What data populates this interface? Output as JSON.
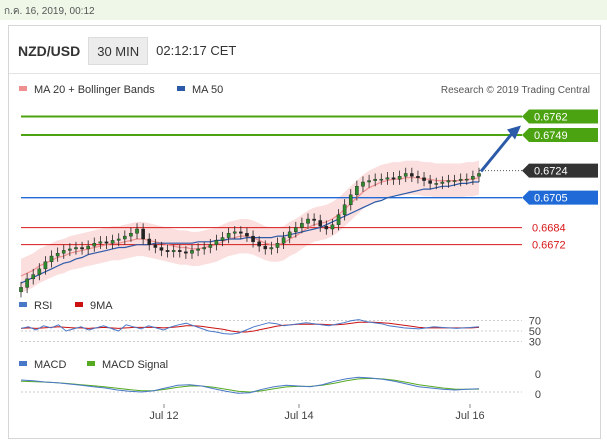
{
  "date_bar": "ก.ค. 16, 2019, 00:12",
  "header": {
    "pair": "NZD/USD",
    "timeframe": "30 MIN",
    "time": "02:12:17 CET"
  },
  "legend": [
    {
      "label": "MA 20 + Bollinger Bands",
      "color": "#f08f8f"
    },
    {
      "label": "MA 50",
      "color": "#2b5aa8"
    }
  ],
  "copyright": "Research © 2019 Trading Central",
  "chart_data": {
    "type": "line",
    "title": "",
    "main": {
      "y_range": [
        0.665,
        0.6775
      ],
      "price_series": [
        0.6642,
        0.6648,
        0.6651,
        0.6655,
        0.666,
        0.6664,
        0.6666,
        0.6668,
        0.6669,
        0.667,
        0.6669,
        0.6671,
        0.6673,
        0.6674,
        0.6673,
        0.6675,
        0.6676,
        0.6678,
        0.668,
        0.6683,
        0.6676,
        0.6672,
        0.667,
        0.6668,
        0.6667,
        0.6668,
        0.6667,
        0.6666,
        0.6668,
        0.6669,
        0.667,
        0.6672,
        0.6675,
        0.6677,
        0.668,
        0.6681,
        0.668,
        0.6678,
        0.6674,
        0.6671,
        0.6669,
        0.667,
        0.6673,
        0.6677,
        0.6681,
        0.6684,
        0.6687,
        0.669,
        0.6689,
        0.6685,
        0.6683,
        0.6686,
        0.6693,
        0.67,
        0.6707,
        0.6713,
        0.6716,
        0.6717,
        0.6718,
        0.6718,
        0.6719,
        0.6718,
        0.672,
        0.6722,
        0.672,
        0.6719,
        0.6717,
        0.6715,
        0.6715,
        0.6716,
        0.6717,
        0.6717,
        0.6718,
        0.6718,
        0.672,
        0.6722
      ],
      "ma20_series": [
        0.665,
        0.6652,
        0.6654,
        0.6657,
        0.6659,
        0.6661,
        0.6663,
        0.6664,
        0.6666,
        0.6667,
        0.6668,
        0.6669,
        0.667,
        0.6671,
        0.6672,
        0.6673,
        0.6673,
        0.6674,
        0.6675,
        0.6676,
        0.6676,
        0.6675,
        0.6674,
        0.6673,
        0.6672,
        0.6671,
        0.667,
        0.667,
        0.6669,
        0.6669,
        0.667,
        0.6671,
        0.6672,
        0.6674,
        0.6676,
        0.6677,
        0.6678,
        0.6678,
        0.6677,
        0.6675,
        0.6673,
        0.6672,
        0.6672,
        0.6673,
        0.6676,
        0.6678,
        0.6681,
        0.6684,
        0.6686,
        0.6687,
        0.6688,
        0.669,
        0.6693,
        0.6697,
        0.6701,
        0.6705,
        0.6709,
        0.6712,
        0.6714,
        0.6716,
        0.6717,
        0.6718,
        0.6718,
        0.6719,
        0.6719,
        0.6719,
        0.6718,
        0.6718,
        0.6717,
        0.6717,
        0.6717,
        0.6717,
        0.6717,
        0.6718,
        0.6718,
        0.6719
      ],
      "ma50_series": [
        0.6645,
        0.6647,
        0.6649,
        0.6651,
        0.6653,
        0.6655,
        0.6657,
        0.6659,
        0.666,
        0.6662,
        0.6663,
        0.6665,
        0.6666,
        0.6667,
        0.6668,
        0.6669,
        0.667,
        0.667,
        0.6671,
        0.6672,
        0.6672,
        0.6672,
        0.6673,
        0.6673,
        0.6673,
        0.6673,
        0.6673,
        0.6673,
        0.6673,
        0.6674,
        0.6674,
        0.6674,
        0.6675,
        0.6675,
        0.6676,
        0.6676,
        0.6676,
        0.6677,
        0.6677,
        0.6677,
        0.6677,
        0.6677,
        0.6678,
        0.6678,
        0.6679,
        0.668,
        0.6681,
        0.6682,
        0.6683,
        0.6684,
        0.6686,
        0.6688,
        0.669,
        0.6692,
        0.6694,
        0.6696,
        0.6698,
        0.67,
        0.6702,
        0.6703,
        0.6705,
        0.6706,
        0.6707,
        0.6708,
        0.6709,
        0.671,
        0.6711,
        0.6711,
        0.6712,
        0.6713,
        0.6713,
        0.6714,
        0.6715,
        0.6715,
        0.6716,
        0.6716
      ],
      "band_width": 0.0012,
      "target_price": 0.6762,
      "levels": [
        {
          "label": "0.6762",
          "value": 0.6762,
          "color": "#4ca312",
          "kind": "resistance"
        },
        {
          "label": "0.6749",
          "value": 0.6749,
          "color": "#4ca312",
          "kind": "resistance"
        },
        {
          "label": "0.6724",
          "value": 0.6724,
          "color": "#333333",
          "kind": "current"
        },
        {
          "label": "0.6705",
          "value": 0.6705,
          "color": "#1f6ad6",
          "kind": "pivot"
        },
        {
          "label": "0.6684",
          "value": 0.6684,
          "color": "#d81818",
          "kind": "support"
        },
        {
          "label": "0.6672",
          "value": 0.6672,
          "color": "#d81818",
          "kind": "support"
        }
      ]
    },
    "rsi": {
      "legend": [
        {
          "label": "RSI",
          "color": "#4a78c8"
        },
        {
          "label": "9MA",
          "color": "#cc1111"
        }
      ],
      "y_range": [
        25,
        75
      ],
      "y_ticks": [
        "70",
        "50",
        "30"
      ],
      "rsi_series": [
        55,
        58,
        52,
        60,
        56,
        62,
        50,
        54,
        58,
        52,
        56,
        60,
        55,
        50,
        62,
        58,
        54,
        60,
        56,
        52,
        58,
        62,
        65,
        60,
        55,
        50,
        48,
        45,
        44,
        46,
        52,
        58,
        62,
        66,
        64,
        60,
        62,
        64,
        66,
        64,
        62,
        60,
        63,
        66,
        70,
        72,
        68,
        66,
        64,
        60,
        58,
        56,
        55,
        54,
        56,
        58,
        57,
        56,
        55,
        56,
        57,
        58
      ],
      "ma_series": [
        55,
        56,
        55,
        56,
        57,
        58,
        57,
        56,
        56,
        55,
        56,
        57,
        56,
        55,
        56,
        57,
        57,
        57,
        57,
        56,
        57,
        58,
        60,
        60,
        59,
        57,
        55,
        53,
        50,
        48,
        48,
        50,
        53,
        56,
        59,
        61,
        62,
        63,
        63,
        63,
        63,
        62,
        62,
        63,
        65,
        67,
        67,
        67,
        66,
        65,
        63,
        61,
        59,
        57,
        56,
        56,
        56,
        56,
        56,
        56,
        56,
        57
      ]
    },
    "macd": {
      "legend": [
        {
          "label": "MACD",
          "color": "#4a78c8"
        },
        {
          "label": "MACD Signal",
          "color": "#55aa22"
        }
      ],
      "y_range": [
        -0.6,
        1.5
      ],
      "y_ticks": [
        "0",
        "0"
      ],
      "macd_series": [
        0.9,
        0.85,
        0.75,
        0.7,
        0.6,
        0.5,
        0.4,
        0.3,
        0.15,
        0.05,
        0.0,
        0.1,
        0.3,
        0.5,
        0.55,
        0.45,
        0.25,
        0.05,
        -0.1,
        -0.05,
        0.2,
        0.4,
        0.5,
        0.45,
        0.4,
        0.55,
        0.8,
        1.0,
        1.1,
        1.05,
        0.95,
        0.8,
        0.6,
        0.4,
        0.3,
        0.2,
        0.15,
        0.2,
        0.25
      ],
      "signal_series": [
        0.8,
        0.78,
        0.74,
        0.7,
        0.63,
        0.55,
        0.47,
        0.38,
        0.28,
        0.18,
        0.1,
        0.1,
        0.2,
        0.35,
        0.45,
        0.45,
        0.35,
        0.2,
        0.05,
        0.0,
        0.1,
        0.25,
        0.38,
        0.42,
        0.42,
        0.5,
        0.65,
        0.85,
        0.98,
        1.02,
        0.98,
        0.88,
        0.72,
        0.55,
        0.42,
        0.3,
        0.22,
        0.2,
        0.22
      ]
    },
    "x_labels": [
      "Jul 12",
      "Jul 14",
      "Jul 16"
    ]
  }
}
